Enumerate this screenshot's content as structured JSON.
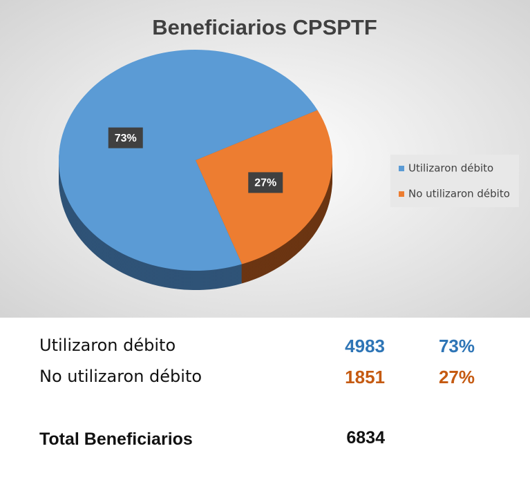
{
  "chart_data": {
    "type": "pie",
    "title": "Beneficiarios CPSPTF",
    "categories": [
      "Utilizaron débito",
      "No utilizaron débito"
    ],
    "values": [
      73,
      27
    ],
    "value_labels": [
      "73%",
      "27%"
    ],
    "colors": [
      "#5b9bd5",
      "#ed7d31"
    ],
    "legend": "right"
  },
  "table": {
    "rows": [
      [
        "Utilizaron débito",
        "4983",
        "73%"
      ],
      [
        "No utilizaron débito",
        "1851",
        "27%"
      ]
    ],
    "total": [
      "Total Beneficiarios",
      "6834"
    ]
  }
}
